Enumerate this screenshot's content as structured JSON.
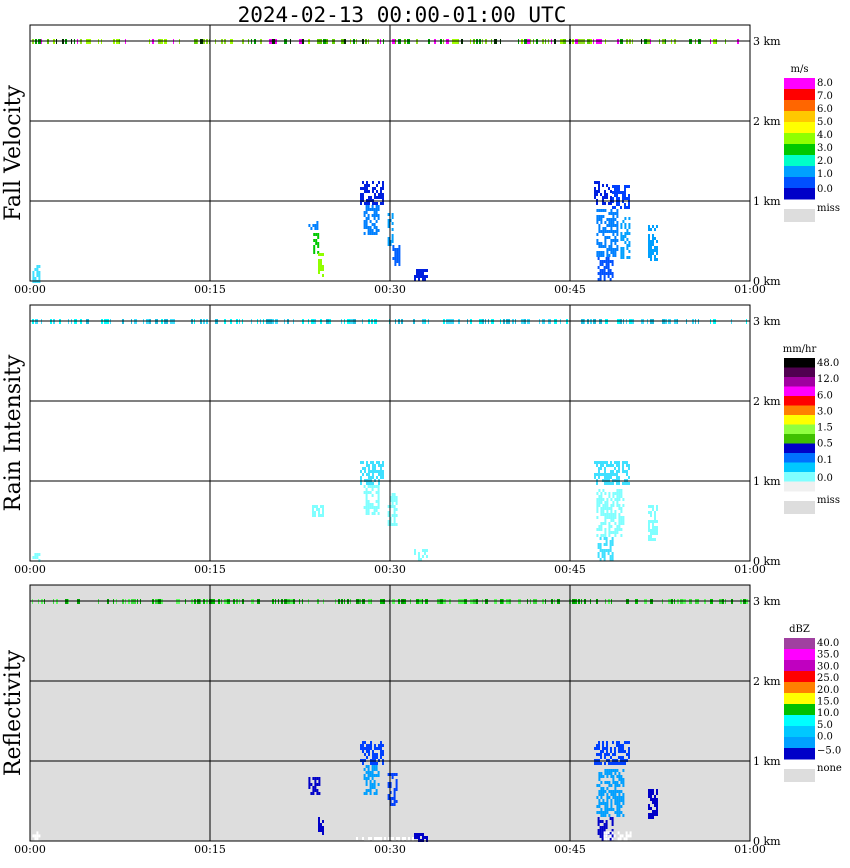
{
  "title": "2024-02-13  00:00-01:00 UTC",
  "x_ticks": [
    "00:00",
    "00:15",
    "00:30",
    "00:45",
    "01:00"
  ],
  "height_ticks": [
    "0 km",
    "1 km",
    "2 km",
    "3 km"
  ],
  "chart_data": [
    {
      "type": "heatmap",
      "ylabel": "Fall Velocity",
      "units": "m/s",
      "xlim": [
        0,
        60
      ],
      "ylim_km": [
        0,
        3.2
      ],
      "background": "#ffffff",
      "colorbar": {
        "labels": [
          "8.0",
          "7.0",
          "6.0",
          "5.0",
          "4.0",
          "3.0",
          "2.0",
          "1.0",
          "0.0"
        ],
        "colors": [
          "#ff00ff",
          "#ff0000",
          "#ff6600",
          "#ffc800",
          "#ffff00",
          "#90ff00",
          "#00c800",
          "#00ffc8",
          "#00a0ff",
          "#0050ff",
          "#0000c8"
        ],
        "missing_label": "miss",
        "missing_color": "#dddddd"
      },
      "band_3km": {
        "palette": [
          "#90e020",
          "#60d000",
          "#a0ff00",
          "#00a000",
          "#ff00ff",
          "#003000"
        ]
      },
      "cells": [
        {
          "x": [
            0.2,
            0.8
          ],
          "h": [
            0.0,
            0.2
          ],
          "color": "#40e0ff"
        },
        {
          "x": [
            23.2,
            24.0
          ],
          "h": [
            0.65,
            0.75
          ],
          "color": "#0080ff"
        },
        {
          "x": [
            23.6,
            24.1
          ],
          "h": [
            0.35,
            0.6
          ],
          "color": "#00c800"
        },
        {
          "x": [
            24.0,
            24.5
          ],
          "h": [
            0.05,
            0.35
          ],
          "color": "#90ff00"
        },
        {
          "x": [
            27.5,
            29.5
          ],
          "h": [
            0.95,
            1.25
          ],
          "color": "#0020e0"
        },
        {
          "x": [
            27.8,
            29.0
          ],
          "h": [
            0.6,
            0.95
          ],
          "color": "#0080ff"
        },
        {
          "x": [
            29.8,
            30.3
          ],
          "h": [
            0.45,
            0.85
          ],
          "color": "#00a0ff"
        },
        {
          "x": [
            30.2,
            30.8
          ],
          "h": [
            0.2,
            0.45
          ],
          "color": "#0060ff"
        },
        {
          "x": [
            32.0,
            33.0
          ],
          "h": [
            0.0,
            0.15
          ],
          "color": "#0020e0"
        },
        {
          "x": [
            47.0,
            48.5
          ],
          "h": [
            0.95,
            1.25
          ],
          "color": "#0020e0"
        },
        {
          "x": [
            48.5,
            50.0
          ],
          "h": [
            0.9,
            1.2
          ],
          "color": "#0040ff"
        },
        {
          "x": [
            47.2,
            49.0
          ],
          "h": [
            0.3,
            0.9
          ],
          "color": "#0080ff"
        },
        {
          "x": [
            49.2,
            50.0
          ],
          "h": [
            0.3,
            0.8
          ],
          "color": "#00a0ff"
        },
        {
          "x": [
            47.3,
            48.5
          ],
          "h": [
            0.0,
            0.3
          ],
          "color": "#0050ff"
        },
        {
          "x": [
            51.5,
            52.3
          ],
          "h": [
            0.25,
            0.7
          ],
          "color": "#00a0ff"
        }
      ]
    },
    {
      "type": "heatmap",
      "ylabel": "Rain Intensity",
      "units": "mm/hr",
      "xlim": [
        0,
        60
      ],
      "ylim_km": [
        0,
        3.2
      ],
      "background": "#ffffff",
      "colorbar": {
        "labels": [
          "48.0",
          "12.0",
          "6.0",
          "3.0",
          "1.5",
          "0.5",
          "0.1",
          "0.0"
        ],
        "colors": [
          "#000000",
          "#500050",
          "#a000a0",
          "#ff00ff",
          "#ff0000",
          "#ff8000",
          "#ffff00",
          "#90ff40",
          "#40c000",
          "#0000c8",
          "#0070ff",
          "#00c8ff",
          "#80ffff",
          "#f0f0f0"
        ],
        "missing_label": "miss",
        "missing_color": "#dddddd"
      },
      "band_3km": {
        "palette": [
          "#40e0ff",
          "#00ffff",
          "#20c0e0"
        ]
      },
      "cells": [
        {
          "x": [
            0.2,
            0.8
          ],
          "h": [
            0.0,
            0.1
          ],
          "color": "#80ffff"
        },
        {
          "x": [
            23.5,
            24.5
          ],
          "h": [
            0.55,
            0.7
          ],
          "color": "#80ffff"
        },
        {
          "x": [
            27.5,
            29.5
          ],
          "h": [
            0.95,
            1.25
          ],
          "color": "#40e0ff"
        },
        {
          "x": [
            27.8,
            29.0
          ],
          "h": [
            0.6,
            0.95
          ],
          "color": "#80ffff"
        },
        {
          "x": [
            29.8,
            30.5
          ],
          "h": [
            0.45,
            0.85
          ],
          "color": "#80ffff"
        },
        {
          "x": [
            32.0,
            33.0
          ],
          "h": [
            0.0,
            0.15
          ],
          "color": "#80ffff"
        },
        {
          "x": [
            47.0,
            50.0
          ],
          "h": [
            0.95,
            1.25
          ],
          "color": "#40e0ff"
        },
        {
          "x": [
            47.2,
            49.5
          ],
          "h": [
            0.3,
            0.9
          ],
          "color": "#80ffff"
        },
        {
          "x": [
            47.3,
            48.5
          ],
          "h": [
            0.0,
            0.3
          ],
          "color": "#40e0ff"
        },
        {
          "x": [
            51.5,
            52.3
          ],
          "h": [
            0.25,
            0.7
          ],
          "color": "#80ffff"
        }
      ]
    },
    {
      "type": "heatmap",
      "ylabel": "Reflectivity",
      "units": "dBZ",
      "xlim": [
        0,
        60
      ],
      "ylim_km": [
        0,
        3.2
      ],
      "background": "#dddddd",
      "colorbar": {
        "labels": [
          "40.0",
          "35.0",
          "30.0",
          "25.0",
          "20.0",
          "15.0",
          "10.0",
          "5.0",
          "0.0",
          "−5.0"
        ],
        "colors": [
          "#a040a0",
          "#ff00ff",
          "#c000c0",
          "#ff0000",
          "#ff8000",
          "#ffff00",
          "#00c000",
          "#00ffff",
          "#00c8ff",
          "#00a0ff",
          "#0000c8"
        ],
        "missing_label": "none",
        "missing_color": "#dddddd"
      },
      "band_3km": {
        "palette": [
          "#00c000",
          "#40e040",
          "#00a000",
          "#60ff60"
        ]
      },
      "cells": [
        {
          "x": [
            0.2,
            0.8
          ],
          "h": [
            0.0,
            0.12
          ],
          "color": "#ffffff"
        },
        {
          "x": [
            23.2,
            24.2
          ],
          "h": [
            0.6,
            0.8
          ],
          "color": "#0000c8"
        },
        {
          "x": [
            24.0,
            24.5
          ],
          "h": [
            0.1,
            0.3
          ],
          "color": "#0000c8"
        },
        {
          "x": [
            27.5,
            29.5
          ],
          "h": [
            0.95,
            1.25
          ],
          "color": "#0040ff"
        },
        {
          "x": [
            27.8,
            29.0
          ],
          "h": [
            0.6,
            0.95
          ],
          "color": "#00a0ff"
        },
        {
          "x": [
            29.8,
            30.5
          ],
          "h": [
            0.45,
            0.85
          ],
          "color": "#0040ff"
        },
        {
          "x": [
            32.0,
            33.0
          ],
          "h": [
            0.0,
            0.1
          ],
          "color": "#0000c8"
        },
        {
          "x": [
            47.0,
            50.0
          ],
          "h": [
            0.95,
            1.25
          ],
          "color": "#0040ff"
        },
        {
          "x": [
            47.2,
            49.5
          ],
          "h": [
            0.3,
            0.9
          ],
          "color": "#00a0ff"
        },
        {
          "x": [
            47.3,
            48.5
          ],
          "h": [
            0.0,
            0.3
          ],
          "color": "#0000c8"
        },
        {
          "x": [
            51.5,
            52.3
          ],
          "h": [
            0.3,
            0.65
          ],
          "color": "#0000c8"
        },
        {
          "x": [
            27.0,
            32.0
          ],
          "h": [
            0.0,
            0.05
          ],
          "color": "#ffffff"
        },
        {
          "x": [
            47.8,
            50.0
          ],
          "h": [
            0.0,
            0.12
          ],
          "color": "#ffffff"
        }
      ]
    }
  ]
}
